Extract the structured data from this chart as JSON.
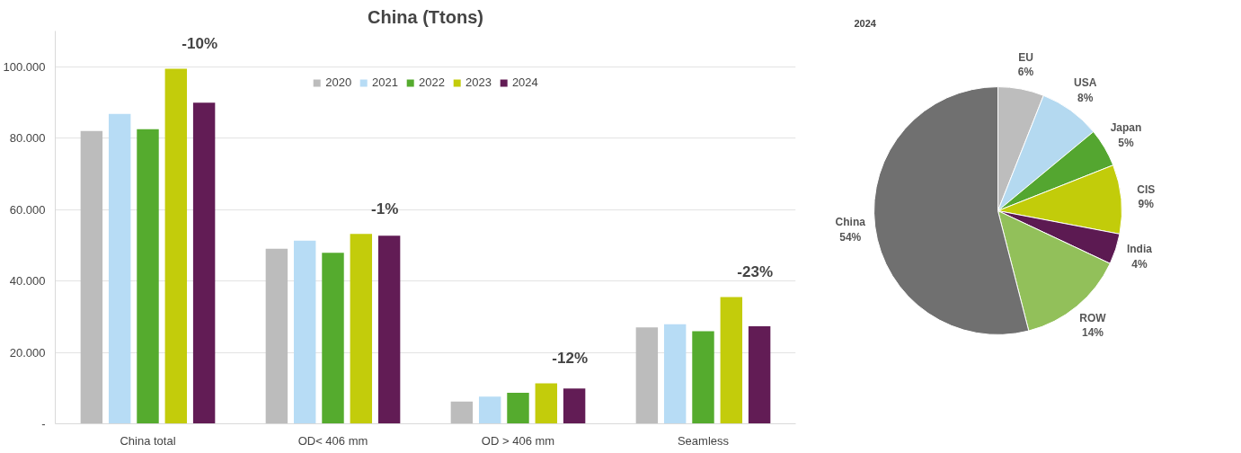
{
  "chart_data": [
    {
      "type": "bar",
      "title": "China (Ttons)",
      "categories": [
        "China total",
        "OD< 406 mm",
        "OD > 406 mm",
        "Seamless"
      ],
      "series": [
        {
          "name": "2020",
          "color": "#bcbcbc",
          "values": [
            82000,
            49000,
            6200,
            27000
          ]
        },
        {
          "name": "2021",
          "color": "#b7dcf5",
          "values": [
            86800,
            51300,
            7600,
            27900
          ]
        },
        {
          "name": "2022",
          "color": "#55ab2e",
          "values": [
            82500,
            47900,
            8700,
            25900
          ]
        },
        {
          "name": "2023",
          "color": "#c3cc0b",
          "values": [
            99400,
            53200,
            11300,
            35500
          ]
        },
        {
          "name": "2024",
          "color": "#621c55",
          "values": [
            89900,
            52700,
            9900,
            27300
          ]
        }
      ],
      "ylim": [
        0,
        110000
      ],
      "yticks": [
        {
          "value": 0,
          "label": "-"
        },
        {
          "value": 20000,
          "label": "20.000"
        },
        {
          "value": 40000,
          "label": "40.000"
        },
        {
          "value": 60000,
          "label": "60.000"
        },
        {
          "value": 80000,
          "label": "80.000"
        },
        {
          "value": 100000,
          "label": "100.000"
        }
      ],
      "grid": "y",
      "legend": "top",
      "annotations": [
        "-10%",
        "-1%",
        "-12%",
        "-23%"
      ]
    },
    {
      "type": "pie",
      "title": "2024",
      "categories": [
        "EU",
        "USA",
        "Japan",
        "CIS",
        "India",
        "ROW",
        "China"
      ],
      "values": [
        6,
        8,
        5,
        9,
        4,
        14,
        54
      ],
      "colors": [
        "#bdbdbd",
        "#b4d9f0",
        "#54a630",
        "#c2cc0a",
        "#5c1a52",
        "#92c05a",
        "#707070"
      ],
      "value_labels": [
        "6%",
        "8%",
        "5%",
        "9%",
        "4%",
        "14%",
        "54%"
      ]
    }
  ]
}
